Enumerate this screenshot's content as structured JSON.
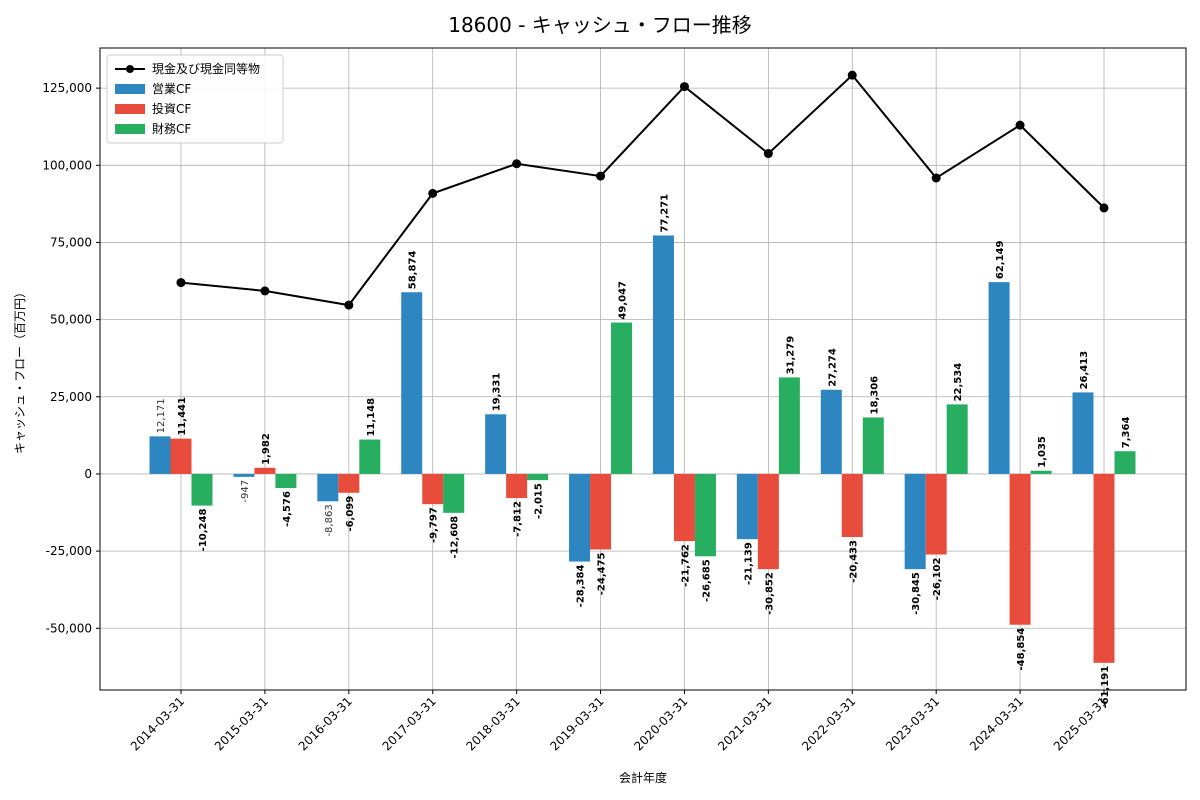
{
  "chart_data": {
    "type": "bar",
    "title": "18600 - キャッシュ・フロー推移",
    "xlabel": "会計年度",
    "ylabel": "キャッシュ・フロー（百万円）",
    "ylim": [
      -70000,
      138000
    ],
    "yticks": [
      -50000,
      -25000,
      0,
      25000,
      50000,
      75000,
      100000,
      125000
    ],
    "grid": true,
    "legend_position": "top-left",
    "categories": [
      "2014-03-31",
      "2015-03-31",
      "2016-03-31",
      "2017-03-31",
      "2018-03-31",
      "2019-03-31",
      "2020-03-31",
      "2021-03-31",
      "2022-03-31",
      "2023-03-31",
      "2024-03-31",
      "2025-03-31"
    ],
    "series": [
      {
        "name": "営業CF",
        "type": "bar",
        "color": "#2e86c1",
        "values": [
          12171,
          -947,
          -8863,
          58874,
          19331,
          -28384,
          77271,
          -21139,
          27274,
          -30845,
          62149,
          26413
        ],
        "labels": [
          "12,171",
          "-947",
          "-8,863",
          "58,874",
          "19,331",
          "-28,384",
          "77,271",
          "-21,139",
          "27,274",
          "-30,845",
          "62,149",
          "26,413"
        ]
      },
      {
        "name": "投資CF",
        "type": "bar",
        "color": "#e74c3c",
        "values": [
          11441,
          1982,
          -6099,
          -9797,
          -7812,
          -24475,
          -21762,
          -30852,
          -20433,
          -26102,
          -48854,
          -61191
        ],
        "labels": [
          "11,441",
          "1,982",
          "-6,099",
          "-9,797",
          "-7,812",
          "-24,475",
          "-21,762",
          "-30,852",
          "-20,433",
          "-26,102",
          "-48,854",
          "-61,191"
        ]
      },
      {
        "name": "財務CF",
        "type": "bar",
        "color": "#27ae60",
        "values": [
          -10248,
          -4576,
          11148,
          -12608,
          -2015,
          49047,
          -26685,
          31279,
          18306,
          22534,
          1035,
          7364
        ],
        "labels": [
          "-10,248",
          "-4,576",
          "11,148",
          "-12,608",
          "-2,015",
          "49,047",
          "-26,685",
          "31,279",
          "18,306",
          "22,534",
          "1,035",
          "7,364"
        ]
      },
      {
        "name": "現金及び現金同等物",
        "type": "line",
        "color": "#000000",
        "values": [
          62000,
          59300,
          54700,
          90900,
          100500,
          96500,
          125500,
          103800,
          129200,
          95900,
          113000,
          86200
        ]
      }
    ]
  }
}
